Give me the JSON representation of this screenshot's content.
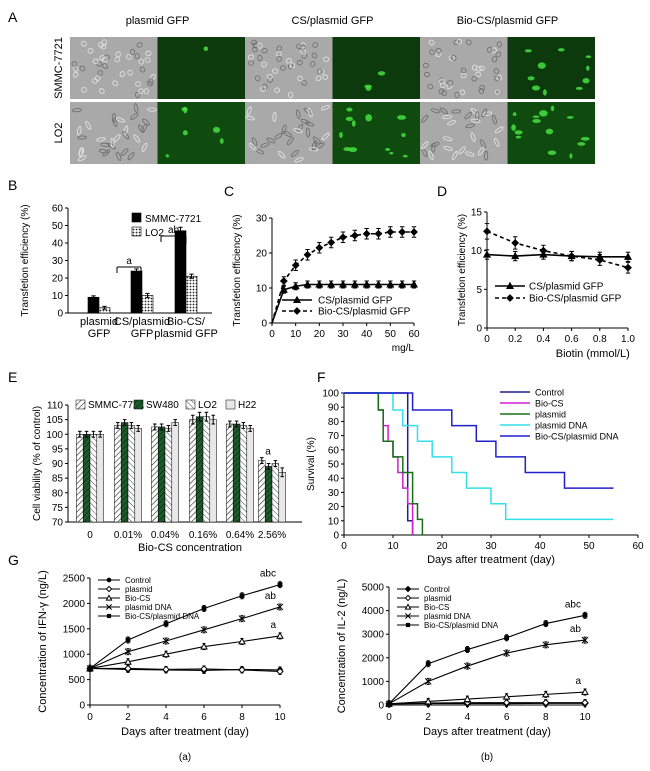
{
  "panel_letters": [
    "A",
    "B",
    "C",
    "D",
    "E",
    "F",
    "G"
  ],
  "panelA": {
    "column_titles": [
      "plasmid GFP",
      "CS/plasmid GFP",
      "Bio-CS/plasmid GFP"
    ],
    "row_labels": [
      "SMMC-7721",
      "LO2"
    ],
    "image_subject": "brightfield and GFP fluorescence micrographs of cells",
    "colors": {
      "brightfield": "#a9a9a9",
      "fluorescence": "#0c3a0c",
      "signal": "#44e040"
    }
  },
  "chart_data": [
    {
      "id": "B",
      "type": "bar",
      "ylabel": "Transfetion efficiency (%)",
      "ylim": [
        0,
        60
      ],
      "yticks": [
        0,
        10,
        20,
        30,
        40,
        50,
        60
      ],
      "categories": [
        "plasmid GFP",
        "CS/plasmid GFP",
        "Bio-CS/ plasmid GFP"
      ],
      "xtick_labels": [
        [
          "plasmid",
          "GFP"
        ],
        [
          "CS/plasmid",
          "GFP"
        ],
        [
          "Bio-CS/",
          "plasmid GFP"
        ]
      ],
      "series": [
        {
          "name": "SMMC-7721",
          "values": [
            9,
            24,
            47
          ],
          "errors": [
            0.8,
            1.2,
            2
          ]
        },
        {
          "name": "LO2",
          "values": [
            3,
            10,
            21
          ],
          "errors": [
            0.8,
            1.2,
            1.2
          ]
        }
      ],
      "annotations": [
        {
          "text": "a",
          "category": 1
        },
        {
          "text": "ab",
          "category": 2
        }
      ]
    },
    {
      "id": "C",
      "type": "line",
      "ylabel": "Transfetion efficiency (%)",
      "xlabel": "mg/L",
      "xlim": [
        0,
        60
      ],
      "ylim": [
        0,
        30
      ],
      "xticks": [
        0,
        10,
        20,
        30,
        40,
        50,
        60
      ],
      "yticks": [
        0,
        10,
        20,
        30
      ],
      "series": [
        {
          "name": "CS/plasmid GFP",
          "style": "solid",
          "marker": "triangle",
          "x": [
            0,
            5,
            10,
            15,
            20,
            25,
            30,
            35,
            40,
            45,
            50,
            55,
            60
          ],
          "y": [
            0,
            9.5,
            10.5,
            11,
            11,
            11,
            11,
            11,
            11,
            11,
            11,
            11,
            11
          ],
          "err": [
            0,
            1,
            1,
            1,
            1,
            1,
            1,
            1,
            1,
            1,
            1,
            1,
            1
          ]
        },
        {
          "name": "Bio-CS/plasmid GFP",
          "style": "dashed",
          "marker": "diamond",
          "x": [
            0,
            5,
            10,
            15,
            20,
            25,
            30,
            35,
            40,
            45,
            50,
            55,
            60
          ],
          "y": [
            0,
            12,
            16.5,
            19.5,
            21.5,
            23,
            24.5,
            25,
            25.5,
            25.5,
            26,
            26,
            26
          ],
          "err": [
            0,
            1.2,
            1.5,
            1.5,
            1.5,
            1.5,
            1.5,
            1.5,
            1.5,
            1.5,
            1.5,
            1.5,
            1.5
          ]
        }
      ]
    },
    {
      "id": "D",
      "type": "line",
      "ylabel": "Transfetion efficiency (%)",
      "xlabel": "Biotin (mmol/L)",
      "xlim": [
        0,
        1.0
      ],
      "ylim": [
        0,
        15
      ],
      "xticks": [
        0,
        0.2,
        0.4,
        0.6,
        0.8,
        1.0
      ],
      "xtick_labels": [
        "0",
        "0.2",
        "0.4",
        "0.6",
        "0.8",
        "1.0"
      ],
      "yticks": [
        0,
        5,
        10,
        15
      ],
      "series": [
        {
          "name": "CS/plasmid GFP",
          "style": "solid",
          "marker": "triangle",
          "x": [
            0,
            0.2,
            0.4,
            0.6,
            0.8,
            1.0
          ],
          "y": [
            9.5,
            9.3,
            9.5,
            9.3,
            9.2,
            9.2
          ],
          "err": [
            0.6,
            0.6,
            0.6,
            0.6,
            0.6,
            0.6
          ]
        },
        {
          "name": "Bio-CS/plasmid GFP",
          "style": "dashed",
          "marker": "diamond",
          "x": [
            0,
            0.2,
            0.4,
            0.6,
            0.8,
            1.0
          ],
          "y": [
            12.5,
            11,
            10,
            9.3,
            8.8,
            7.8
          ],
          "err": [
            1,
            0.8,
            0.7,
            0.6,
            0.7,
            0.7
          ]
        }
      ]
    },
    {
      "id": "E",
      "type": "bar",
      "ylabel": "Cell viability (% of control)",
      "xlabel": "Bio-CS concentration",
      "ylim": [
        70,
        110
      ],
      "yticks": [
        70,
        75,
        80,
        85,
        90,
        95,
        100,
        105,
        110
      ],
      "categories": [
        "0",
        "0.01%",
        "0.04%",
        "0.16%",
        "0.64%",
        "2.56%"
      ],
      "series": [
        {
          "name": "SMMC-7721",
          "values": [
            100,
            103,
            102.5,
            105,
            103.5,
            91
          ],
          "errors": [
            1,
            1,
            1,
            1.5,
            1,
            1
          ]
        },
        {
          "name": "SW480",
          "values": [
            100,
            104,
            102.5,
            106,
            103.5,
            89
          ],
          "errors": [
            1,
            1,
            1,
            1.5,
            1,
            1
          ]
        },
        {
          "name": "LO2",
          "values": [
            100,
            103,
            102,
            106,
            103,
            90
          ],
          "errors": [
            1,
            1,
            1,
            1.5,
            1,
            1
          ]
        },
        {
          "name": "H22",
          "values": [
            100,
            102,
            104,
            105,
            102,
            87
          ],
          "errors": [
            1,
            1,
            1,
            1.5,
            1,
            1.5
          ]
        }
      ],
      "annotations": [
        {
          "text": "a",
          "category": 5
        }
      ]
    },
    {
      "id": "F",
      "type": "line",
      "subtype": "survival step curve",
      "ylabel": "Survival (%)",
      "xlabel": "Days after treatment (day)",
      "xlim": [
        0,
        60
      ],
      "ylim": [
        0,
        100
      ],
      "xticks": [
        0,
        10,
        20,
        30,
        40,
        50,
        60
      ],
      "yticks": [
        0,
        10,
        20,
        30,
        40,
        50,
        60,
        70,
        80,
        90,
        100
      ],
      "series": [
        {
          "name": "Control",
          "color": "#1f1f8f",
          "x": [
            0,
            13,
            14
          ],
          "y": [
            100,
            10,
            0
          ]
        },
        {
          "name": "Bio-CS",
          "color": "#d020d0",
          "x": [
            0,
            7,
            8,
            9,
            10,
            11,
            12,
            13,
            14
          ],
          "y": [
            100,
            88,
            77,
            66,
            55,
            44,
            33,
            22,
            0
          ]
        },
        {
          "name": "plasmid",
          "color": "#157015",
          "x": [
            0,
            7,
            8,
            10,
            12,
            14,
            15,
            16
          ],
          "y": [
            100,
            88,
            66,
            55,
            44,
            22,
            11,
            0
          ]
        },
        {
          "name": "plasmid DNA",
          "color": "#33dfe9",
          "x": [
            0,
            10,
            12,
            15,
            18,
            22,
            25,
            30,
            33,
            38,
            55
          ],
          "y": [
            100,
            88,
            77,
            66,
            55,
            44,
            33,
            22,
            11,
            11,
            11
          ]
        },
        {
          "name": "Bio-CS/plasmid DNA",
          "color": "#2020c8",
          "x": [
            0,
            14,
            22,
            27,
            31,
            37,
            45,
            55
          ],
          "y": [
            100,
            88,
            77,
            66,
            55,
            44,
            33,
            33
          ]
        }
      ]
    },
    {
      "id": "Ga",
      "type": "line",
      "ylabel": "Concentration of IFN-γ (ng/L)",
      "xlabel": "Days after treatment (day)",
      "caption": "(a)",
      "xlim": [
        0,
        10
      ],
      "ylim": [
        0,
        2500
      ],
      "xticks": [
        0,
        2,
        4,
        6,
        8,
        10
      ],
      "yticks": [
        0,
        500,
        1000,
        1500,
        2000,
        2500
      ],
      "x": [
        0,
        2,
        4,
        6,
        8,
        10
      ],
      "series": [
        {
          "name": "Control",
          "marker": "circle",
          "y": [
            720,
            700,
            690,
            680,
            700,
            690
          ]
        },
        {
          "name": "plasmid",
          "marker": "diamond-open",
          "y": [
            720,
            720,
            700,
            710,
            690,
            660
          ]
        },
        {
          "name": "Bio-CS",
          "marker": "triangle-open",
          "y": [
            720,
            850,
            1000,
            1150,
            1250,
            1360
          ]
        },
        {
          "name": "plasmid DNA",
          "marker": "x",
          "y": [
            720,
            1050,
            1260,
            1480,
            1700,
            1930
          ]
        },
        {
          "name": "Bio-CS/plasmid DNA",
          "marker": "square",
          "y": [
            720,
            1280,
            1600,
            1900,
            2150,
            2370
          ]
        }
      ],
      "annotations": [
        {
          "text": "abc",
          "series": "Bio-CS/plasmid DNA"
        },
        {
          "text": "ab",
          "series": "plasmid DNA"
        },
        {
          "text": "a",
          "series": "Bio-CS"
        }
      ]
    },
    {
      "id": "Gb",
      "type": "line",
      "ylabel": "Concentration of IL-2 (ng/L)",
      "xlabel": "Days after treatment (day)",
      "caption": "(b)",
      "xlim": [
        0,
        10
      ],
      "ylim": [
        0,
        5000
      ],
      "xticks": [
        0,
        2,
        4,
        6,
        8,
        10
      ],
      "yticks": [
        0,
        1000,
        2000,
        3000,
        4000,
        5000
      ],
      "x": [
        0,
        2,
        4,
        6,
        8,
        10
      ],
      "series": [
        {
          "name": "Control",
          "marker": "diamond",
          "y": [
            50,
            60,
            60,
            60,
            70,
            70
          ]
        },
        {
          "name": "plasmid",
          "marker": "diamond-open",
          "y": [
            50,
            80,
            100,
            100,
            100,
            100
          ]
        },
        {
          "name": "Bio-CS",
          "marker": "triangle-open",
          "y": [
            50,
            150,
            250,
            350,
            450,
            550
          ]
        },
        {
          "name": "plasmid DNA",
          "marker": "x",
          "y": [
            50,
            1000,
            1650,
            2200,
            2550,
            2750
          ]
        },
        {
          "name": "Bio-CS/plasmid DNA",
          "marker": "square",
          "y": [
            50,
            1750,
            2350,
            2850,
            3450,
            3800
          ]
        }
      ],
      "annotations": [
        {
          "text": "abc",
          "series": "Bio-CS/plasmid DNA"
        },
        {
          "text": "ab",
          "series": "plasmid DNA"
        },
        {
          "text": "a",
          "series": "Bio-CS"
        }
      ]
    }
  ]
}
